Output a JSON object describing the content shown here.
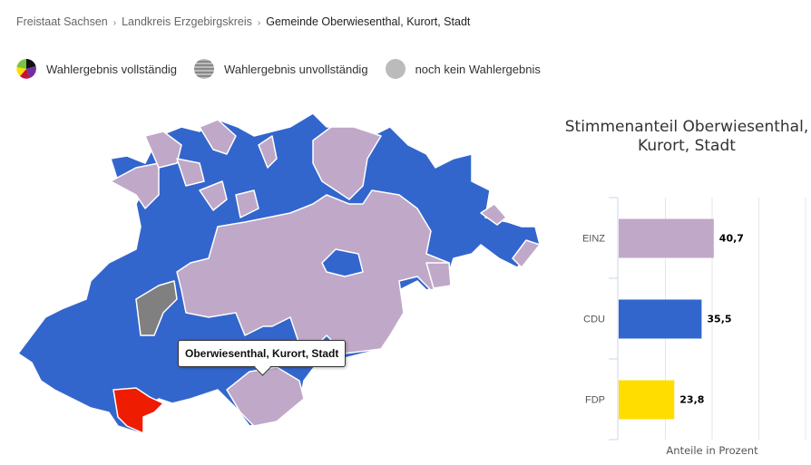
{
  "breadcrumb": {
    "items": [
      "Freistaat Sachsen",
      "Landkreis Erzgebirgskreis"
    ],
    "current": "Gemeinde Oberwiesenthal, Kurort, Stadt",
    "separator": "›"
  },
  "legend": [
    {
      "label": "Wahlergebnis vollständig",
      "icon": "pie-icon"
    },
    {
      "label": "Wahlergebnis unvollständig",
      "icon": "striped-circle-icon",
      "color": "#999999"
    },
    {
      "label": "noch kein Wahlergebnis",
      "icon": "circle-icon",
      "color": "#bbbbbb"
    }
  ],
  "map": {
    "tooltip": "Oberwiesenthal, Kurort, Stadt",
    "colors": {
      "cdu": "#3366cc",
      "einz": "#c0a8c8",
      "incomplete": "#808080",
      "selected": "#ee1c00"
    }
  },
  "chart_data": {
    "type": "bar",
    "title": "Stimmenanteil Oberwiesenthal, Kurort, Stadt",
    "categories": [
      "EINZ",
      "CDU",
      "FDP"
    ],
    "values": [
      40.7,
      35.5,
      23.8
    ],
    "value_labels": [
      "40,7",
      "35,5",
      "23,8"
    ],
    "colors": [
      "#c0a8c8",
      "#3366cc",
      "#ffdd00"
    ],
    "xlabel": "Anteile in Prozent",
    "xlim": [
      0,
      80
    ],
    "orientation": "horizontal",
    "grid": true
  }
}
